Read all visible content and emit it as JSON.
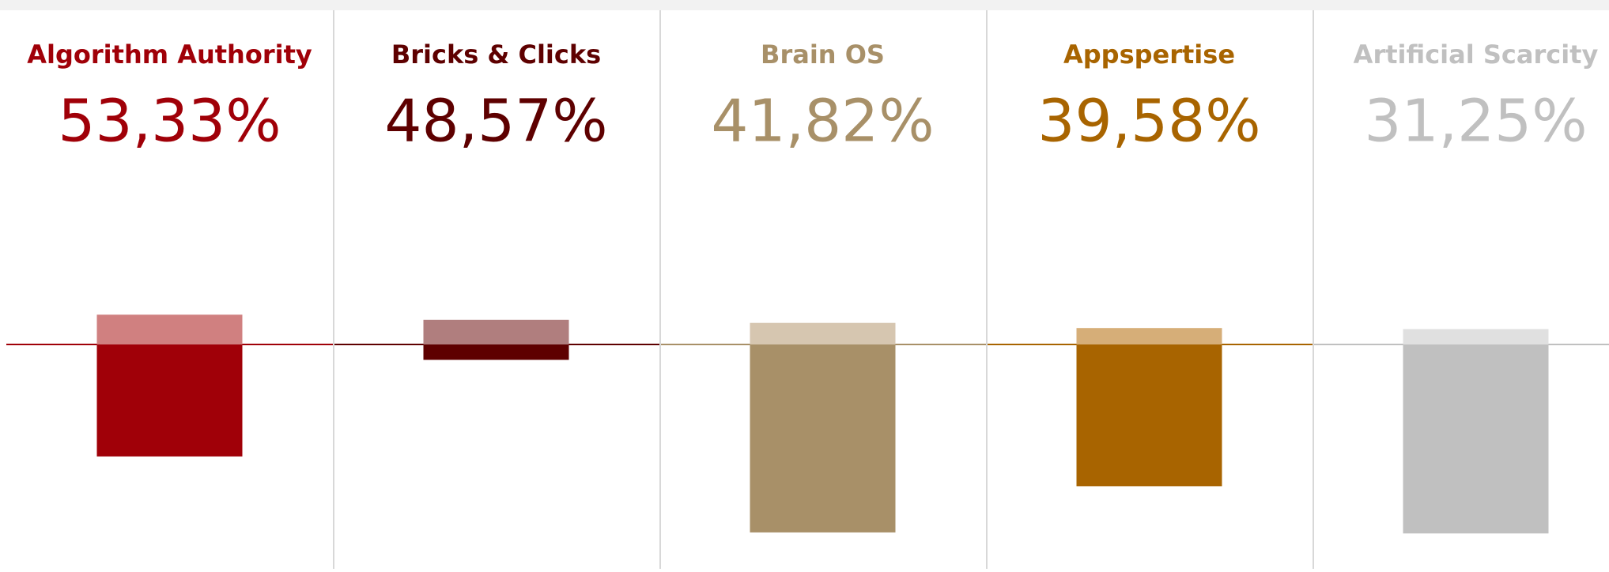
{
  "chart_data": {
    "type": "bar",
    "categories": [
      "Algorithm Authority",
      "Bricks & Clicks",
      "Brain OS",
      "Appspertise",
      "Artificial Scarcity"
    ],
    "values": [
      53.33,
      48.57,
      41.82,
      39.58,
      31.25
    ],
    "value_labels": [
      "53,33%",
      "48,57%",
      "41,82%",
      "39,58%",
      "31,25%"
    ],
    "colors": [
      "#a00008",
      "#5e0000",
      "#a89068",
      "#a86400",
      "#c0c0c0"
    ],
    "light_colors": [
      "#d08080",
      "#b07e7e",
      "#d6c6b0",
      "#d6ae78",
      "#e0e0e0"
    ],
    "above": [
      29,
      24,
      21,
      16,
      15
    ],
    "below": [
      109,
      15,
      183,
      138,
      184
    ],
    "ylim": [
      -190,
      40
    ]
  }
}
